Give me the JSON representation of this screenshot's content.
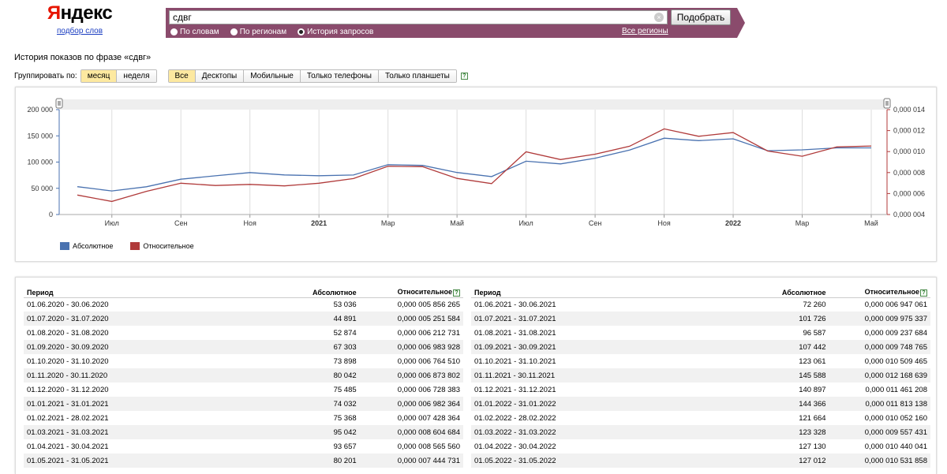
{
  "header": {
    "logo_first": "Я",
    "logo_rest": "ндекс",
    "logo_sub": "подбор слов",
    "search_value": "сдвг",
    "clear_icon": "×",
    "pick_button": "Подобрать",
    "modes": [
      {
        "label": "По словам",
        "selected": false
      },
      {
        "label": "По регионам",
        "selected": false
      },
      {
        "label": "История запросов",
        "selected": true
      }
    ],
    "regions_link": "Все регионы",
    "band_color": "#8a4b6c"
  },
  "page_heading": "История показов по фразе «сдвг»",
  "toolbar": {
    "group_label": "Группировать по:",
    "group_options": [
      "месяц",
      "неделя"
    ],
    "group_active": "месяц",
    "device_options": [
      "Все",
      "Десктопы",
      "Мобильные",
      "Только телефоны",
      "Только планшеты"
    ],
    "device_active": "Все",
    "help_icon": "?"
  },
  "chart_data": {
    "type": "line",
    "x": [
      "2020-06",
      "2020-07",
      "2020-08",
      "2020-09",
      "2020-10",
      "2020-11",
      "2020-12",
      "2021-01",
      "2021-02",
      "2021-03",
      "2021-04",
      "2021-05",
      "2021-06",
      "2021-07",
      "2021-08",
      "2021-09",
      "2021-10",
      "2021-11",
      "2021-12",
      "2022-01",
      "2022-02",
      "2022-03",
      "2022-04",
      "2022-05"
    ],
    "x_tick_labels": [
      {
        "month": "2020-07",
        "label": "Июл",
        "bold": false
      },
      {
        "month": "2020-09",
        "label": "Сен",
        "bold": false
      },
      {
        "month": "2020-11",
        "label": "Ноя",
        "bold": false
      },
      {
        "month": "2021-01",
        "label": "2021",
        "bold": true
      },
      {
        "month": "2021-03",
        "label": "Мар",
        "bold": false
      },
      {
        "month": "2021-05",
        "label": "Май",
        "bold": false
      },
      {
        "month": "2021-07",
        "label": "Июл",
        "bold": false
      },
      {
        "month": "2021-09",
        "label": "Сен",
        "bold": false
      },
      {
        "month": "2021-11",
        "label": "Ноя",
        "bold": false
      },
      {
        "month": "2022-01",
        "label": "2022",
        "bold": true
      },
      {
        "month": "2022-03",
        "label": "Мар",
        "bold": false
      },
      {
        "month": "2022-05",
        "label": "Май",
        "bold": false
      }
    ],
    "y_left": {
      "ticks": [
        "0",
        "50 000",
        "100 000",
        "150 000",
        "200 000"
      ],
      "range": [
        0,
        200000
      ]
    },
    "y_right": {
      "ticks": [
        "0,000 004",
        "0,000 006",
        "0,000 008",
        "0,000 010",
        "0,000 012",
        "0,000 014"
      ],
      "range": [
        4e-06,
        1.4e-05
      ]
    },
    "series": [
      {
        "name": "Абсолютное",
        "axis": "left",
        "color": "#4a72b0",
        "values": [
          53036,
          44891,
          52874,
          67303,
          73898,
          80042,
          75485,
          74032,
          75368,
          95042,
          93657,
          80201,
          72260,
          101726,
          96587,
          107442,
          123061,
          145588,
          140897,
          144366,
          121664,
          123328,
          127130,
          127012
        ]
      },
      {
        "name": "Относительное",
        "axis": "right",
        "color": "#b03a3a",
        "values": [
          5.856265e-06,
          5.251584e-06,
          6.212731e-06,
          6.983928e-06,
          6.76451e-06,
          6.873802e-06,
          6.728383e-06,
          6.982364e-06,
          7.428364e-06,
          8.604684e-06,
          8.56556e-06,
          7.444731e-06,
          6.947061e-06,
          9.975337e-06,
          9.237684e-06,
          9.748765e-06,
          1.0509465e-05,
          1.2168639e-05,
          1.1461208e-05,
          1.1813138e-05,
          1.005216e-05,
          9.557431e-06,
          1.0440041e-05,
          1.0531858e-05
        ]
      }
    ],
    "grid": true,
    "legend_position": "bottom-left"
  },
  "table": {
    "headers": {
      "period": "Период",
      "absolute": "Абсолютное",
      "relative": "Относительное"
    },
    "left": [
      [
        "01.06.2020 - 30.06.2020",
        "53 036",
        "0,000 005 856 265"
      ],
      [
        "01.07.2020 - 31.07.2020",
        "44 891",
        "0,000 005 251 584"
      ],
      [
        "01.08.2020 - 31.08.2020",
        "52 874",
        "0,000 006 212 731"
      ],
      [
        "01.09.2020 - 30.09.2020",
        "67 303",
        "0,000 006 983 928"
      ],
      [
        "01.10.2020 - 31.10.2020",
        "73 898",
        "0,000 006 764 510"
      ],
      [
        "01.11.2020 - 30.11.2020",
        "80 042",
        "0,000 006 873 802"
      ],
      [
        "01.12.2020 - 31.12.2020",
        "75 485",
        "0,000 006 728 383"
      ],
      [
        "01.01.2021 - 31.01.2021",
        "74 032",
        "0,000 006 982 364"
      ],
      [
        "01.02.2021 - 28.02.2021",
        "75 368",
        "0,000 007 428 364"
      ],
      [
        "01.03.2021 - 31.03.2021",
        "95 042",
        "0,000 008 604 684"
      ],
      [
        "01.04.2021 - 30.04.2021",
        "93 657",
        "0,000 008 565 560"
      ],
      [
        "01.05.2021 - 31.05.2021",
        "80 201",
        "0,000 007 444 731"
      ]
    ],
    "right": [
      [
        "01.06.2021 - 30.06.2021",
        "72 260",
        "0,000 006 947 061"
      ],
      [
        "01.07.2021 - 31.07.2021",
        "101 726",
        "0,000 009 975 337"
      ],
      [
        "01.08.2021 - 31.08.2021",
        "96 587",
        "0,000 009 237 684"
      ],
      [
        "01.09.2021 - 30.09.2021",
        "107 442",
        "0,000 009 748 765"
      ],
      [
        "01.10.2021 - 31.10.2021",
        "123 061",
        "0,000 010 509 465"
      ],
      [
        "01.11.2021 - 30.11.2021",
        "145 588",
        "0,000 012 168 639"
      ],
      [
        "01.12.2021 - 31.12.2021",
        "140 897",
        "0,000 011 461 208"
      ],
      [
        "01.01.2022 - 31.01.2022",
        "144 366",
        "0,000 011 813 138"
      ],
      [
        "01.02.2022 - 28.02.2022",
        "121 664",
        "0,000 010 052 160"
      ],
      [
        "01.03.2022 - 31.03.2022",
        "123 328",
        "0,000 009 557 431"
      ],
      [
        "01.04.2022 - 30.04.2022",
        "127 130",
        "0,000 010 440 041"
      ],
      [
        "01.05.2022 - 31.05.2022",
        "127 012",
        "0,000 010 531 858"
      ]
    ]
  }
}
